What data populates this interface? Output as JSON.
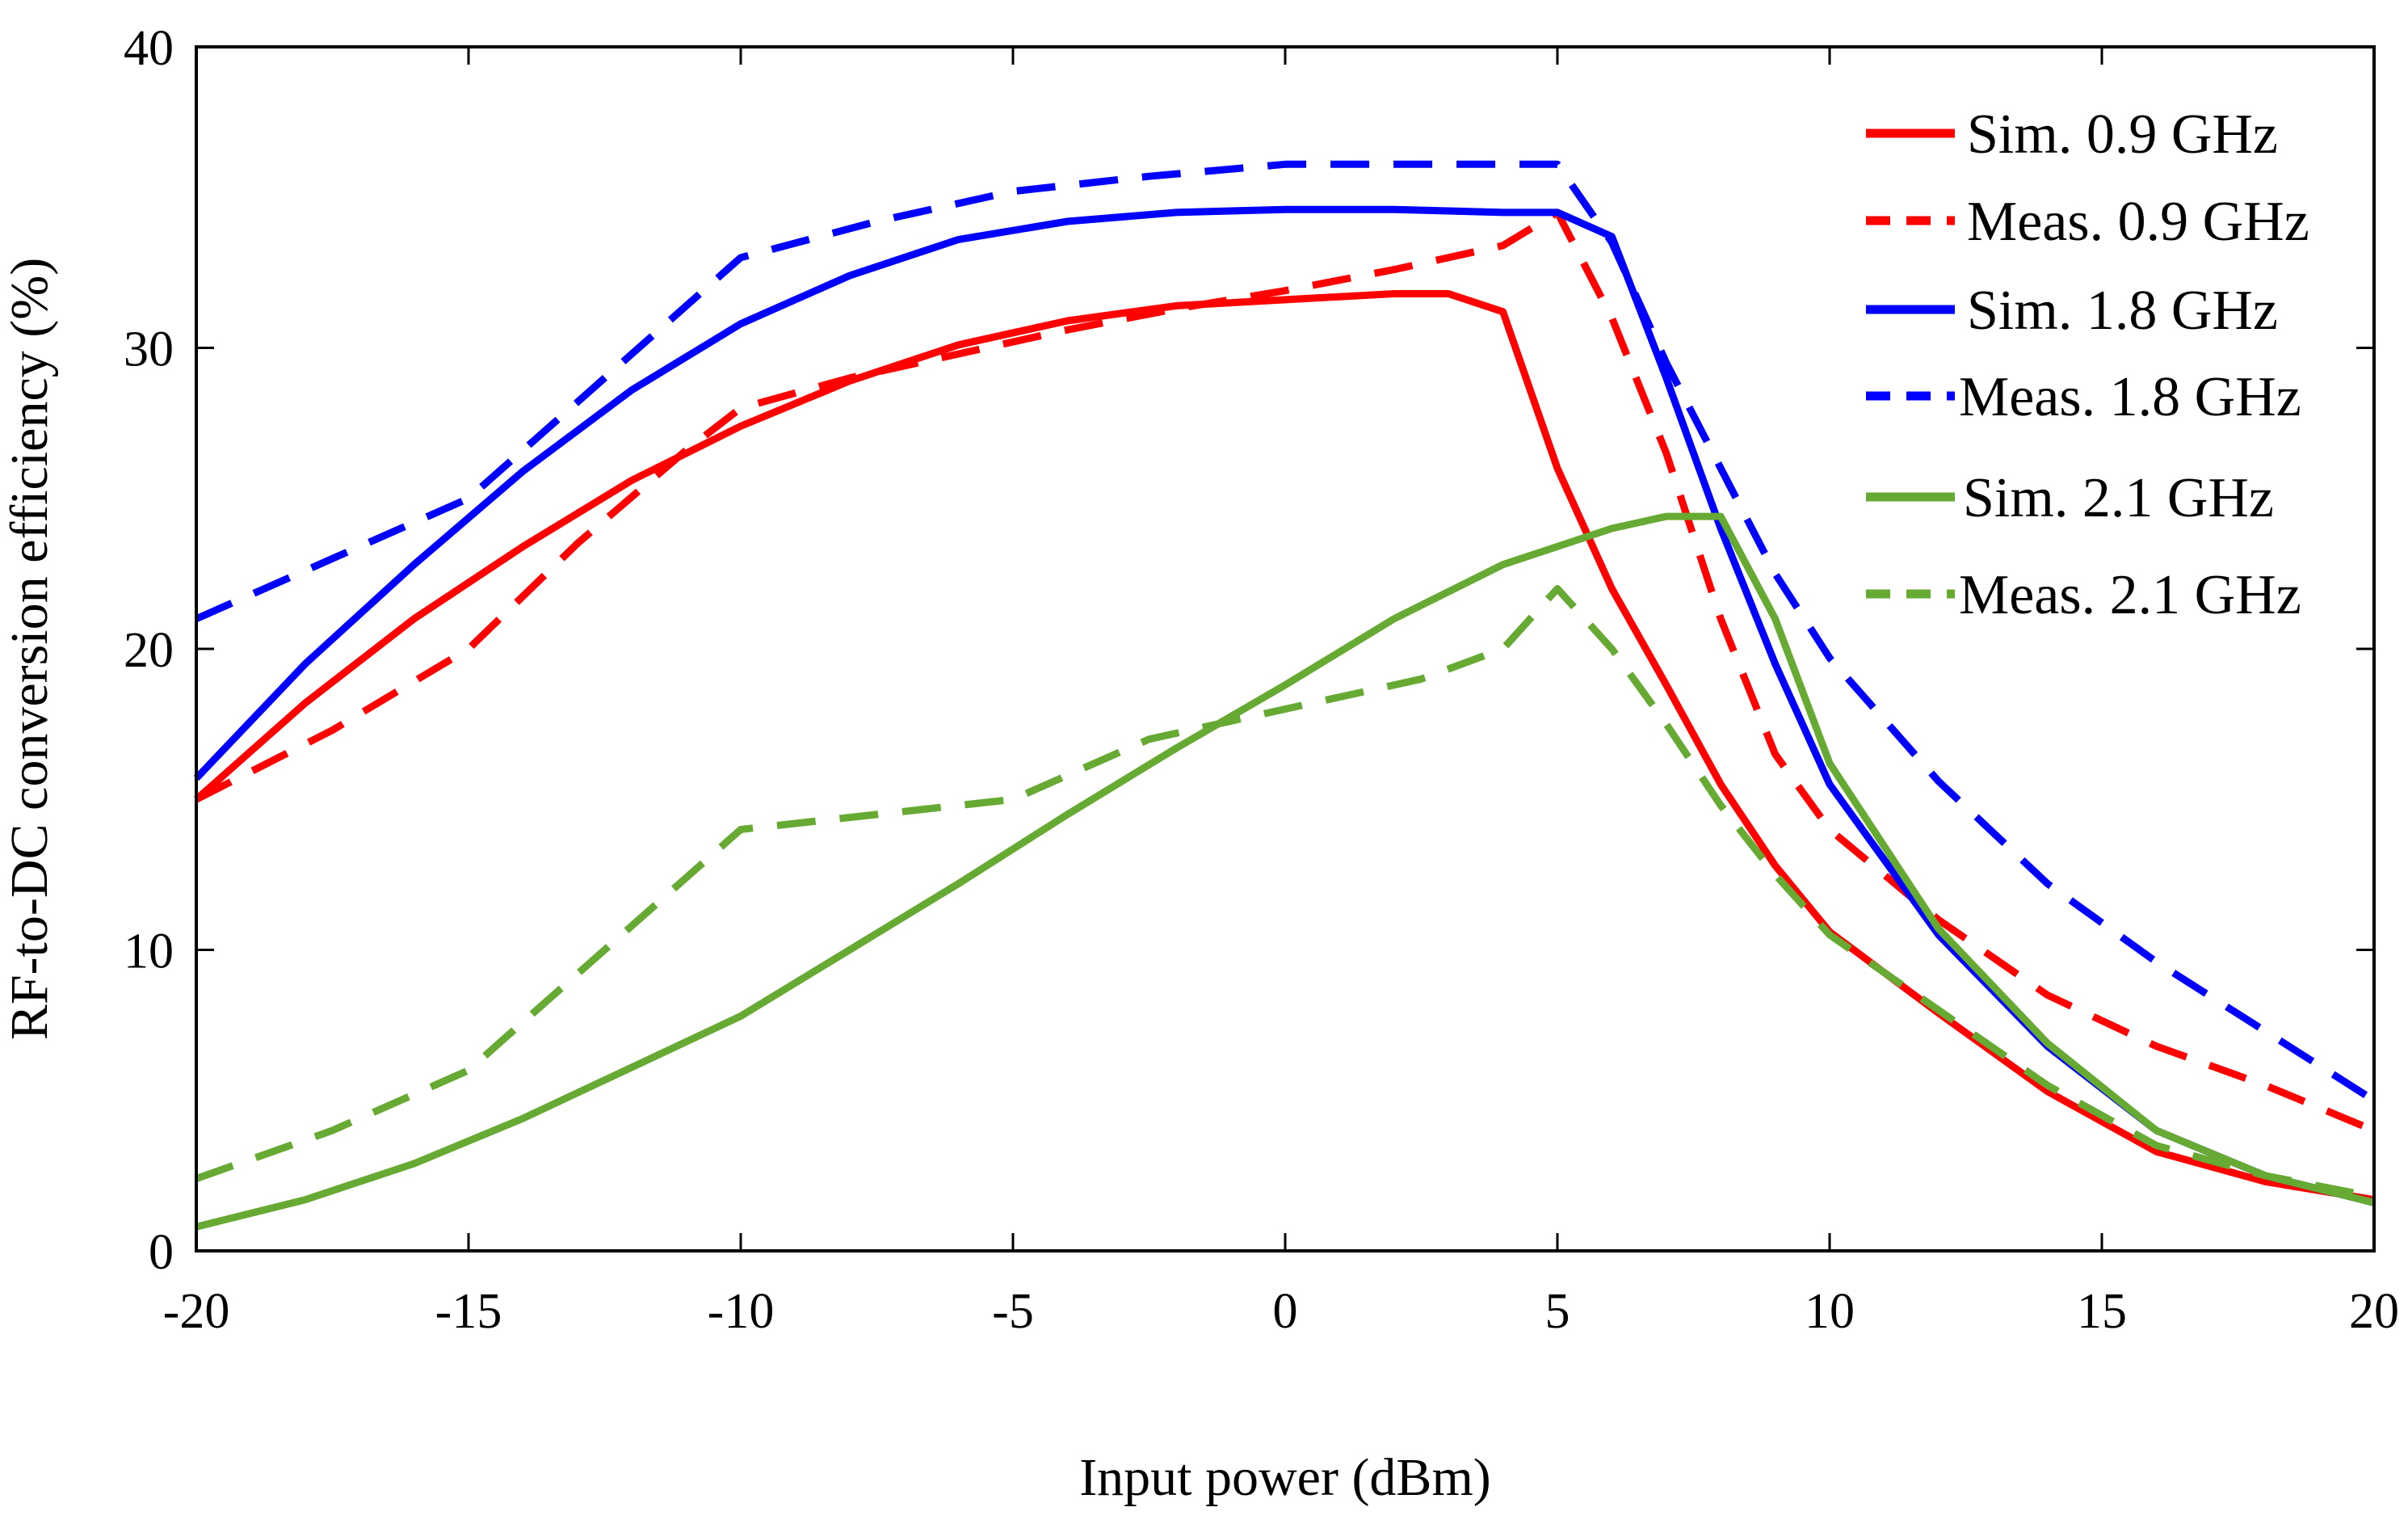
{
  "chart_data": {
    "type": "line",
    "title": "",
    "xlabel": "Input power (dBm)",
    "ylabel": "RF-to-DC conversion efficiency (%)",
    "xlim": [
      -20,
      20
    ],
    "ylim": [
      0,
      40
    ],
    "xticks": [
      -20,
      -15,
      -10,
      -5,
      0,
      5,
      10,
      15,
      20
    ],
    "yticks": [
      0,
      10,
      20,
      30,
      40
    ],
    "xtick_labels": [
      "-20",
      "-15",
      "-10",
      "-5",
      "0",
      "5",
      "10",
      "15",
      "20"
    ],
    "ytick_labels": [
      "0",
      "10",
      "20",
      "30",
      "40"
    ],
    "grid": false,
    "legend_position": "top-right",
    "series": [
      {
        "name": "Sim. 0.9 GHz",
        "color": "#ff0000",
        "dash": "solid",
        "x": [
          -20,
          -18,
          -16,
          -14,
          -12,
          -10,
          -8,
          -6,
          -4,
          -2,
          0,
          2,
          3,
          4,
          5,
          6,
          7,
          8,
          9,
          10,
          12,
          14,
          16,
          18,
          20
        ],
        "y": [
          15,
          18.2,
          21,
          23.4,
          25.6,
          27.4,
          28.9,
          30.1,
          30.9,
          31.4,
          31.6,
          31.8,
          31.8,
          31.2,
          26,
          22,
          18.8,
          15.5,
          12.8,
          10.6,
          7.9,
          5.3,
          3.3,
          2.3,
          1.7
        ]
      },
      {
        "name": "Meas. 0.9 GHz",
        "color": "#ff0000",
        "dash": "dashed",
        "x": [
          -20,
          -17.5,
          -15,
          -13,
          -11,
          -10,
          -8,
          -6,
          -4,
          -2,
          0,
          2,
          4,
          5,
          6,
          7,
          8,
          9,
          10,
          12,
          14,
          16,
          18,
          20
        ],
        "y": [
          15,
          17.3,
          20,
          23.5,
          26.6,
          28,
          29,
          29.8,
          30.6,
          31.3,
          31.9,
          32.6,
          33.4,
          34.5,
          31,
          26.5,
          21,
          16.5,
          14,
          11,
          8.5,
          6.8,
          5.5,
          4
        ]
      },
      {
        "name": "Sim. 1.8 GHz",
        "color": "#0000ff",
        "dash": "solid",
        "x": [
          -20,
          -18,
          -16,
          -14,
          -12,
          -10,
          -8,
          -6,
          -4,
          -2,
          0,
          2,
          4,
          5,
          6,
          7,
          8,
          9,
          10,
          12,
          14,
          16,
          18,
          20
        ],
        "y": [
          15.7,
          19.5,
          22.8,
          25.9,
          28.6,
          30.8,
          32.4,
          33.6,
          34.2,
          34.5,
          34.6,
          34.6,
          34.5,
          34.5,
          33.7,
          29,
          24,
          19.5,
          15.5,
          10.5,
          6.8,
          4,
          2.5,
          1.6
        ]
      },
      {
        "name": "Meas. 1.8 GHz",
        "color": "#0000ff",
        "dash": "dashed",
        "x": [
          -20,
          -17.5,
          -15,
          -12.5,
          -10,
          -7.5,
          -5,
          -2.5,
          0,
          2.5,
          5,
          6,
          7,
          8,
          9,
          10,
          12,
          14,
          16,
          18,
          20
        ],
        "y": [
          21,
          23,
          25,
          29,
          33,
          34.2,
          35.2,
          35.7,
          36.1,
          36.1,
          36.1,
          33.5,
          29.5,
          26,
          22.5,
          19.7,
          15.6,
          12.2,
          9.6,
          7.3,
          5
        ]
      },
      {
        "name": "Sim. 2.1 GHz",
        "color": "#66aa33",
        "dash": "solid",
        "x": [
          -20,
          -18,
          -16,
          -14,
          -12,
          -10,
          -8,
          -6,
          -4,
          -2,
          0,
          2,
          4,
          6,
          7,
          8,
          9,
          10,
          12,
          14,
          16,
          18,
          20
        ],
        "y": [
          0.8,
          1.7,
          2.9,
          4.4,
          6.1,
          7.8,
          10,
          12.2,
          14.5,
          16.7,
          18.8,
          21,
          22.8,
          24,
          24.4,
          24.4,
          21,
          16.2,
          10.7,
          6.9,
          4,
          2.5,
          1.6
        ]
      },
      {
        "name": "Meas. 2.1 GHz",
        "color": "#66aa33",
        "dash": "dashed",
        "x": [
          -20,
          -17.5,
          -15,
          -12.5,
          -10,
          -7.5,
          -5,
          -2.5,
          0,
          2.5,
          4,
          5,
          6,
          7,
          8,
          9,
          10,
          12,
          14,
          16,
          18,
          20
        ],
        "y": [
          2.4,
          4,
          6,
          10,
          14,
          14.5,
          15,
          17,
          18,
          19,
          20,
          22,
          20,
          17.5,
          14.8,
          12.5,
          10.5,
          8,
          5.5,
          3.5,
          2.5,
          1.8
        ]
      }
    ]
  }
}
